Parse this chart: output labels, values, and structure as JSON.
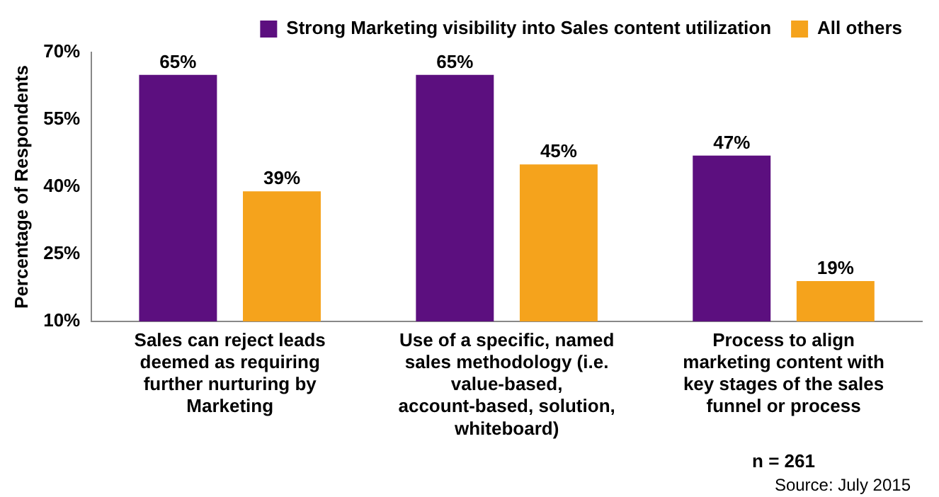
{
  "chart_data": {
    "type": "bar",
    "ylabel": "Percentage of Respondents",
    "categories": [
      "Sales can reject leads deemed as requiring further nurturing by Marketing",
      "Use of a specific, named sales methodology (i.e. value-based, account-based, solution, whiteboard)",
      "Process to align marketing content with key stages of the sales funnel or process"
    ],
    "series": [
      {
        "name": "Strong Marketing visibility into Sales content utilization",
        "color": "#5c0f7f",
        "values": [
          65,
          65,
          47
        ],
        "value_labels": [
          "65%",
          "65%",
          "47%"
        ]
      },
      {
        "name": "All others",
        "color": "#f5a31c",
        "values": [
          39,
          45,
          19
        ],
        "value_labels": [
          "39%",
          "45%",
          "19%"
        ]
      }
    ],
    "ylim": [
      10,
      70
    ],
    "yticks": [
      {
        "value": 10,
        "label": "10%"
      },
      {
        "value": 25,
        "label": "25%"
      },
      {
        "value": 40,
        "label": "40%"
      },
      {
        "value": 55,
        "label": "55%"
      },
      {
        "value": 70,
        "label": "70%"
      }
    ],
    "legend": "top",
    "grid": false,
    "annotations": [
      "n = 261",
      "Source: July 2015"
    ]
  }
}
